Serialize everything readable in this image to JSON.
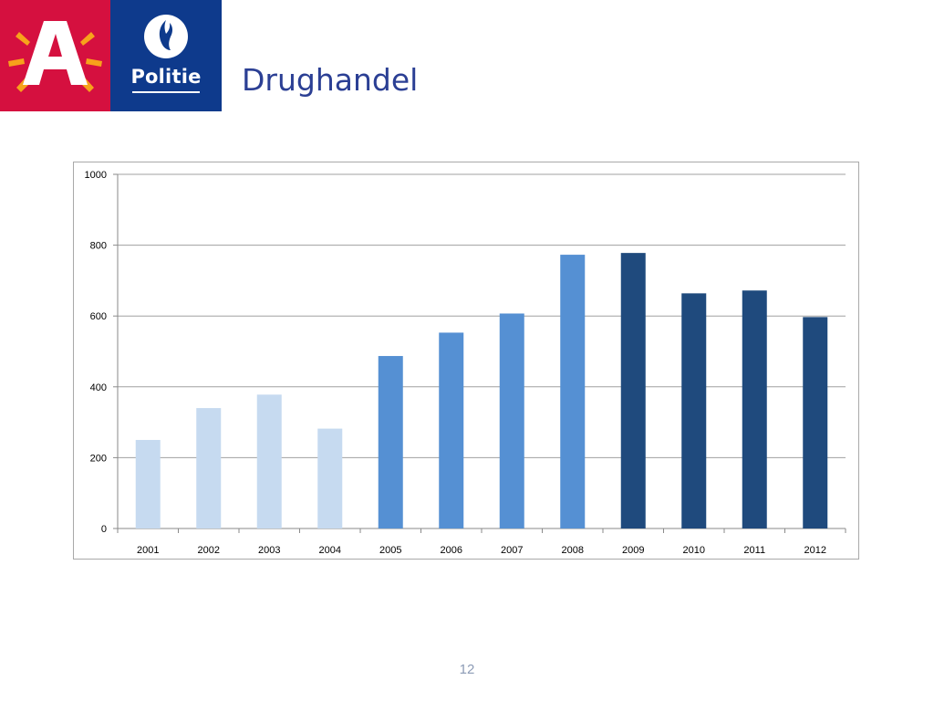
{
  "slide": {
    "title": "Drughandel",
    "page_number": "12"
  },
  "logos": {
    "antwerp": {
      "icon": "antwerp-a-logo-icon",
      "color": "#d5103f",
      "accent": "#f7a21b"
    },
    "police": {
      "icon": "police-flame-icon",
      "label": "Politie",
      "color": "#0e3a8c"
    }
  },
  "chart_data": {
    "type": "bar",
    "title": "",
    "xlabel": "",
    "ylabel": "",
    "ylim": [
      0,
      1000
    ],
    "yticks": [
      0,
      200,
      400,
      600,
      800,
      1000
    ],
    "grid": true,
    "legend": "none",
    "categories": [
      "2001",
      "2002",
      "2003",
      "2004",
      "2005",
      "2006",
      "2007",
      "2008",
      "2009",
      "2010",
      "2011",
      "2012"
    ],
    "values": [
      250,
      340,
      378,
      282,
      487,
      553,
      607,
      773,
      778,
      664,
      672,
      597
    ],
    "bar_colors": [
      "#c6daf0",
      "#c6daf0",
      "#c6daf0",
      "#c6daf0",
      "#5590d3",
      "#5590d3",
      "#5590d3",
      "#5590d3",
      "#1f4a7d",
      "#1f4a7d",
      "#1f4a7d",
      "#1f4a7d"
    ]
  }
}
